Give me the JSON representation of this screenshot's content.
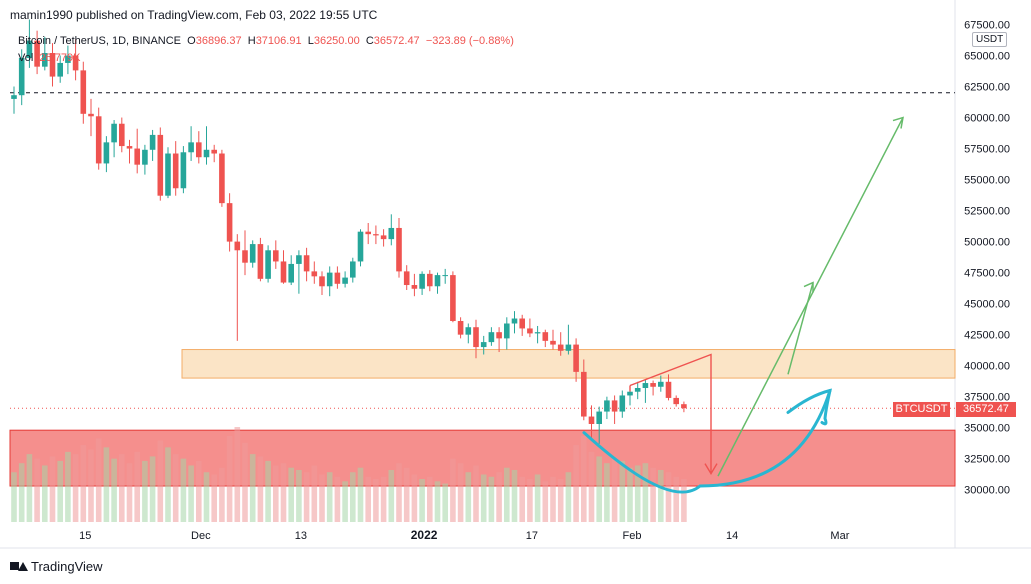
{
  "header": {
    "published": "mamin1990 published on TradingView.com, Feb 03, 2022 19:55 UTC"
  },
  "legend": {
    "symbol": "Bitcoin / TetherUS, 1D, BINANCE",
    "o_label": "O",
    "o": "36896.37",
    "h_label": "H",
    "h": "37106.91",
    "l_label": "L",
    "l": "36250.00",
    "c_label": "C",
    "c": "36572.47",
    "change": "−323.89 (−0.88%)"
  },
  "volume": {
    "label": "Vol",
    "value": "26.779K"
  },
  "price_axis": {
    "currency": "USDT"
  },
  "last_price": {
    "symbol": "BTCUSDT",
    "price": "36572.47"
  },
  "footer": {
    "brand": "TradingView"
  },
  "colors": {
    "up": "#26a69a",
    "down": "#ef5350",
    "zone_resistance": "#f9c88b",
    "zone_support": "#ef5350",
    "arrow_green": "#66bb6a",
    "arrow_red": "#ef5350",
    "curve": "#29b6d1"
  },
  "chart_data": {
    "type": "candlestick",
    "symbol": "BTCUSDT",
    "interval": "1D",
    "x_ticks": [
      "15",
      "Dec",
      "13",
      "2022",
      "17",
      "Feb",
      "14",
      "Mar"
    ],
    "y_ticks": [
      "67500.00",
      "65000.00",
      "62500.00",
      "60000.00",
      "57500.00",
      "55000.00",
      "52500.00",
      "50000.00",
      "47500.00",
      "45000.00",
      "42500.00",
      "40000.00",
      "37500.00",
      "35000.00",
      "32500.00",
      "30000.00"
    ],
    "ylim": [
      27400,
      67700
    ],
    "dashed_level": 62000,
    "last_price": 36572.47,
    "resistance_zone": [
      39000,
      41300
    ],
    "support_zone": [
      30300,
      34800
    ],
    "ohlc": [
      [
        61500,
        62500,
        60300,
        61800
      ],
      [
        61800,
        65500,
        61000,
        64800
      ],
      [
        64800,
        67900,
        64000,
        66200
      ],
      [
        66200,
        67000,
        63500,
        64100
      ],
      [
        64100,
        66500,
        63800,
        65200
      ],
      [
        65200,
        66000,
        62500,
        63300
      ],
      [
        63300,
        65000,
        62800,
        64400
      ],
      [
        64400,
        65800,
        63500,
        65000
      ],
      [
        65000,
        66300,
        63000,
        63800
      ],
      [
        63800,
        64500,
        59500,
        60300
      ],
      [
        60300,
        61500,
        58500,
        60100
      ],
      [
        60100,
        60800,
        55800,
        56300
      ],
      [
        56300,
        58500,
        55600,
        58000
      ],
      [
        58000,
        59800,
        56800,
        59500
      ],
      [
        59500,
        60000,
        57200,
        57700
      ],
      [
        57700,
        58200,
        56300,
        57500
      ],
      [
        57500,
        59100,
        55500,
        56200
      ],
      [
        56200,
        57800,
        55400,
        57400
      ],
      [
        57400,
        59000,
        56500,
        58600
      ],
      [
        58600,
        59200,
        53300,
        53700
      ],
      [
        53700,
        57600,
        53500,
        57100
      ],
      [
        57100,
        58100,
        53700,
        54300
      ],
      [
        54300,
        57700,
        53900,
        57200
      ],
      [
        57200,
        59300,
        56500,
        58000
      ],
      [
        58000,
        58900,
        56300,
        56800
      ],
      [
        56800,
        59300,
        56200,
        57400
      ],
      [
        57400,
        57800,
        56400,
        57100
      ],
      [
        57100,
        57400,
        52800,
        53100
      ],
      [
        53100,
        53900,
        49200,
        50000
      ],
      [
        50000,
        50600,
        42000,
        49300
      ],
      [
        49300,
        50900,
        47300,
        48300
      ],
      [
        48300,
        50100,
        47900,
        49800
      ],
      [
        49800,
        50300,
        46800,
        47000
      ],
      [
        47000,
        49700,
        46700,
        49300
      ],
      [
        49300,
        50100,
        47800,
        48400
      ],
      [
        48400,
        49300,
        46600,
        46700
      ],
      [
        46700,
        48900,
        46500,
        48200
      ],
      [
        48200,
        49300,
        45800,
        48900
      ],
      [
        48900,
        49500,
        46800,
        47600
      ],
      [
        47600,
        48400,
        46600,
        47200
      ],
      [
        47200,
        47600,
        45700,
        46400
      ],
      [
        46400,
        48000,
        45600,
        47500
      ],
      [
        47500,
        48000,
        46200,
        46600
      ],
      [
        46600,
        47600,
        46300,
        47100
      ],
      [
        47100,
        48700,
        46700,
        48400
      ],
      [
        48400,
        51000,
        48000,
        50800
      ],
      [
        50800,
        51500,
        49800,
        50600
      ],
      [
        50600,
        51300,
        49800,
        50500
      ],
      [
        50500,
        51000,
        49600,
        50200
      ],
      [
        50200,
        52200,
        49700,
        51100
      ],
      [
        51100,
        51900,
        47100,
        47600
      ],
      [
        47600,
        48100,
        46100,
        46500
      ],
      [
        46500,
        47400,
        45600,
        46200
      ],
      [
        46200,
        47600,
        45700,
        47400
      ],
      [
        47400,
        47700,
        46000,
        46400
      ],
      [
        46400,
        47500,
        45800,
        47300
      ],
      [
        47300,
        47800,
        46600,
        47300
      ],
      [
        47300,
        47600,
        43500,
        43600
      ],
      [
        43600,
        43900,
        42200,
        42500
      ],
      [
        42500,
        43400,
        41800,
        43100
      ],
      [
        43100,
        43700,
        40600,
        41500
      ],
      [
        41500,
        42400,
        40900,
        41900
      ],
      [
        41900,
        43100,
        41600,
        42700
      ],
      [
        42700,
        43100,
        41100,
        42200
      ],
      [
        42200,
        43900,
        41300,
        43400
      ],
      [
        43400,
        44400,
        42600,
        43800
      ],
      [
        43800,
        44100,
        42400,
        43000
      ],
      [
        43000,
        43800,
        42300,
        42600
      ],
      [
        42600,
        43200,
        41800,
        42700
      ],
      [
        42700,
        42900,
        41500,
        42000
      ],
      [
        42000,
        42900,
        41300,
        41700
      ],
      [
        41700,
        42700,
        40800,
        41200
      ],
      [
        41200,
        43300,
        40900,
        41700
      ],
      [
        41700,
        42200,
        38700,
        39500
      ],
      [
        39500,
        40500,
        35600,
        35900
      ],
      [
        35900,
        36800,
        34000,
        35300
      ],
      [
        35300,
        36700,
        33700,
        36300
      ],
      [
        36300,
        37500,
        35700,
        37200
      ],
      [
        37200,
        37600,
        35300,
        36300
      ],
      [
        36300,
        38000,
        35800,
        37600
      ],
      [
        37600,
        38300,
        36800,
        37900
      ],
      [
        37900,
        38700,
        37300,
        38200
      ],
      [
        38200,
        38900,
        37000,
        38600
      ],
      [
        38600,
        38800,
        37600,
        38300
      ],
      [
        38300,
        39200,
        37900,
        38700
      ],
      [
        38700,
        39300,
        37200,
        37400
      ],
      [
        37400,
        37600,
        36700,
        36900
      ],
      [
        36896.37,
        37106.91,
        36250,
        36572.47
      ]
    ],
    "volume": [
      22,
      26,
      30,
      28,
      25,
      29,
      27,
      31,
      30,
      34,
      32,
      37,
      33,
      28,
      30,
      26,
      31,
      27,
      29,
      36,
      33,
      30,
      28,
      25,
      27,
      22,
      21,
      24,
      38,
      42,
      35,
      30,
      29,
      27,
      25,
      26,
      24,
      23,
      22,
      25,
      21,
      22,
      20,
      18,
      22,
      24,
      20,
      19,
      20,
      23,
      26,
      24,
      21,
      19,
      20,
      18,
      17,
      28,
      26,
      22,
      25,
      21,
      20,
      22,
      24,
      23,
      20,
      19,
      21,
      18,
      20,
      19,
      22,
      34,
      38,
      31,
      29,
      26,
      28,
      27,
      24,
      25,
      26,
      24,
      23,
      22,
      20,
      19
    ]
  }
}
